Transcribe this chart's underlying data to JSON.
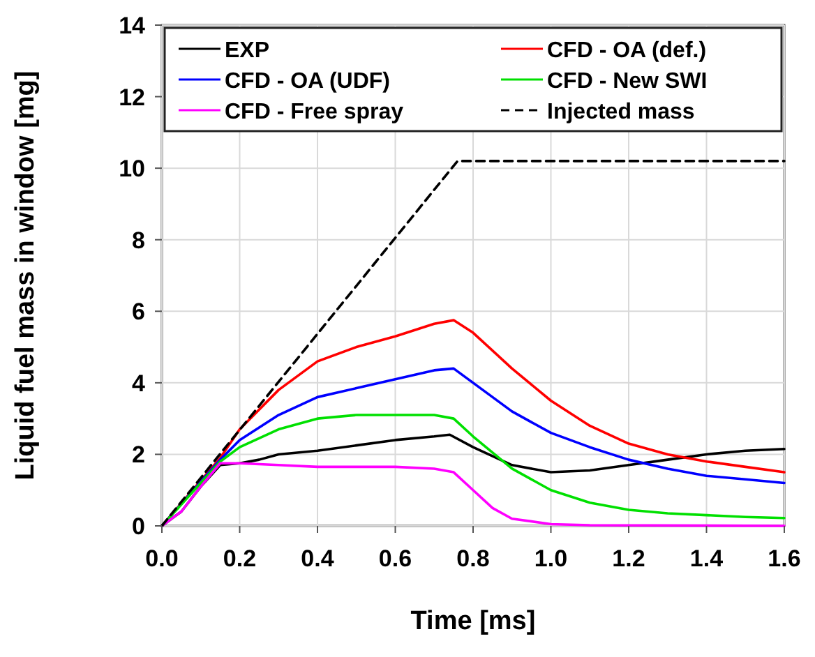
{
  "chart_data": {
    "type": "line",
    "xlabel": "Time [ms]",
    "ylabel": "Liquid fuel mass in window [mg]",
    "xlim": [
      0,
      1.6
    ],
    "ylim": [
      0,
      14
    ],
    "xticks": [
      {
        "value": 0,
        "label": "0.0"
      },
      {
        "value": 0.2,
        "label": "0.2"
      },
      {
        "value": 0.4,
        "label": "0.4"
      },
      {
        "value": 0.6,
        "label": "0.6"
      },
      {
        "value": 0.8,
        "label": "0.8"
      },
      {
        "value": 1,
        "label": "1.0"
      },
      {
        "value": 1.2,
        "label": "1.2"
      },
      {
        "value": 1.4,
        "label": "1.4"
      },
      {
        "value": 1.6,
        "label": "1.6"
      }
    ],
    "yticks": [
      0,
      2,
      4,
      6,
      8,
      10,
      12,
      14
    ],
    "grid": true,
    "legend": "top",
    "line_style": "solid",
    "series": [
      {
        "name": "EXP",
        "color": "#000000",
        "x": [
          0,
          0.05,
          0.1,
          0.15,
          0.2,
          0.25,
          0.3,
          0.4,
          0.5,
          0.6,
          0.7,
          0.74,
          0.8,
          0.9,
          1.0,
          1.1,
          1.2,
          1.3,
          1.4,
          1.5,
          1.6
        ],
        "values": [
          0,
          0.4,
          1.1,
          1.7,
          1.75,
          1.85,
          2.0,
          2.1,
          2.25,
          2.4,
          2.5,
          2.55,
          2.2,
          1.7,
          1.5,
          1.55,
          1.7,
          1.85,
          2.0,
          2.1,
          2.15
        ]
      },
      {
        "name": "CFD - OA (def.)",
        "color": "#ff0000",
        "x": [
          0,
          0.15,
          0.2,
          0.3,
          0.4,
          0.5,
          0.6,
          0.7,
          0.75,
          0.8,
          0.9,
          1.0,
          1.1,
          1.2,
          1.3,
          1.4,
          1.5,
          1.6
        ],
        "values": [
          0,
          1.9,
          2.7,
          3.8,
          4.6,
          5.0,
          5.3,
          5.65,
          5.75,
          5.4,
          4.4,
          3.5,
          2.8,
          2.3,
          2.0,
          1.8,
          1.65,
          1.5
        ]
      },
      {
        "name": "CFD - OA (UDF)",
        "color": "#0000ff",
        "x": [
          0,
          0.15,
          0.2,
          0.3,
          0.4,
          0.5,
          0.6,
          0.7,
          0.75,
          0.8,
          0.9,
          1.0,
          1.1,
          1.2,
          1.3,
          1.4,
          1.5,
          1.6
        ],
        "values": [
          0,
          1.85,
          2.4,
          3.1,
          3.6,
          3.85,
          4.1,
          4.35,
          4.4,
          4.0,
          3.2,
          2.6,
          2.2,
          1.85,
          1.6,
          1.4,
          1.3,
          1.2
        ]
      },
      {
        "name": "CFD - New SWI",
        "color": "#00e000",
        "x": [
          0,
          0.15,
          0.2,
          0.3,
          0.4,
          0.5,
          0.6,
          0.7,
          0.75,
          0.8,
          0.9,
          1.0,
          1.1,
          1.2,
          1.3,
          1.4,
          1.5,
          1.6
        ],
        "values": [
          0,
          1.8,
          2.2,
          2.7,
          3.0,
          3.1,
          3.1,
          3.1,
          3.0,
          2.5,
          1.6,
          1.0,
          0.65,
          0.45,
          0.35,
          0.3,
          0.25,
          0.22
        ]
      },
      {
        "name": "CFD - Free spray",
        "color": "#ff00ff",
        "x": [
          0,
          0.05,
          0.1,
          0.15,
          0.2,
          0.3,
          0.4,
          0.5,
          0.6,
          0.7,
          0.75,
          0.8,
          0.85,
          0.9,
          1.0,
          1.1,
          1.6
        ],
        "values": [
          0,
          0.4,
          1.1,
          1.75,
          1.75,
          1.7,
          1.65,
          1.65,
          1.65,
          1.6,
          1.5,
          1.0,
          0.5,
          0.2,
          0.05,
          0.02,
          0
        ]
      },
      {
        "name": "Injected mass",
        "color": "#000000",
        "line_style": "dashed",
        "x": [
          0,
          0.76,
          1.6
        ],
        "values": [
          0,
          10.2,
          10.2
        ]
      }
    ]
  }
}
